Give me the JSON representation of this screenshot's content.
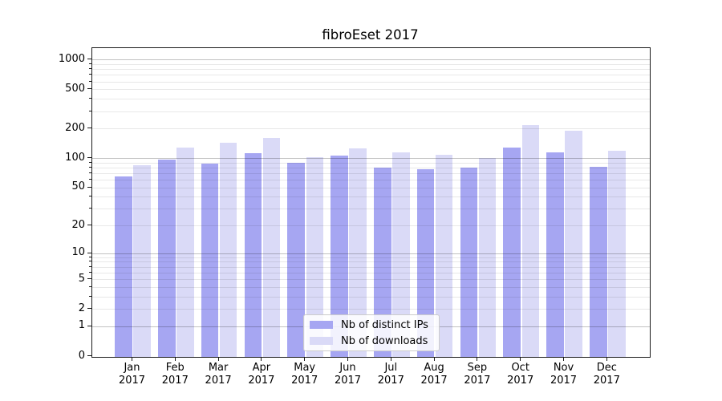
{
  "title": "fibroEset 2017",
  "chart_data": {
    "type": "bar",
    "title": "fibroEset 2017",
    "categories": [
      "Jan",
      "Feb",
      "Mar",
      "Apr",
      "May",
      "Jun",
      "Jul",
      "Aug",
      "Sep",
      "Oct",
      "Nov",
      "Dec"
    ],
    "x_sublabel": "2017",
    "series": [
      {
        "name": "Nb of distinct IPs",
        "color": "#a6a6f2",
        "values": [
          65,
          97,
          88,
          113,
          91,
          107,
          80,
          77,
          80,
          130,
          115,
          82
        ]
      },
      {
        "name": "Nb of downloads",
        "color": "#dadaf7",
        "values": [
          85,
          130,
          145,
          162,
          104,
          128,
          116,
          110,
          101,
          217,
          193,
          120
        ]
      }
    ],
    "y_scale": "log10(1+y)",
    "ylim": [
      0,
      1320
    ],
    "y_tick_values": [
      0,
      1,
      2,
      5,
      10,
      20,
      50,
      100,
      200,
      500,
      1000
    ],
    "y_tick_labels": [
      "0",
      "1",
      "2",
      "5",
      "10",
      "20",
      "50",
      "100",
      "200",
      "500",
      "1000"
    ],
    "y_major_grid": [
      1,
      10,
      100,
      1000
    ],
    "y_minor_grid": [
      2,
      3,
      4,
      5,
      6,
      7,
      8,
      9,
      20,
      30,
      40,
      50,
      60,
      70,
      80,
      90,
      200,
      300,
      400,
      500,
      600,
      700,
      800,
      900
    ],
    "grid": true,
    "legend": {
      "position": "lower center",
      "items": [
        "Nb of distinct IPs",
        "Nb of downloads"
      ]
    }
  },
  "colors": {
    "background": "#ffffff",
    "spine": "#1a1a1a",
    "major_grid": "rgba(0,0,0,0.24)",
    "minor_grid": "rgba(0,0,0,0.09)",
    "legend_border": "#cccccc"
  }
}
